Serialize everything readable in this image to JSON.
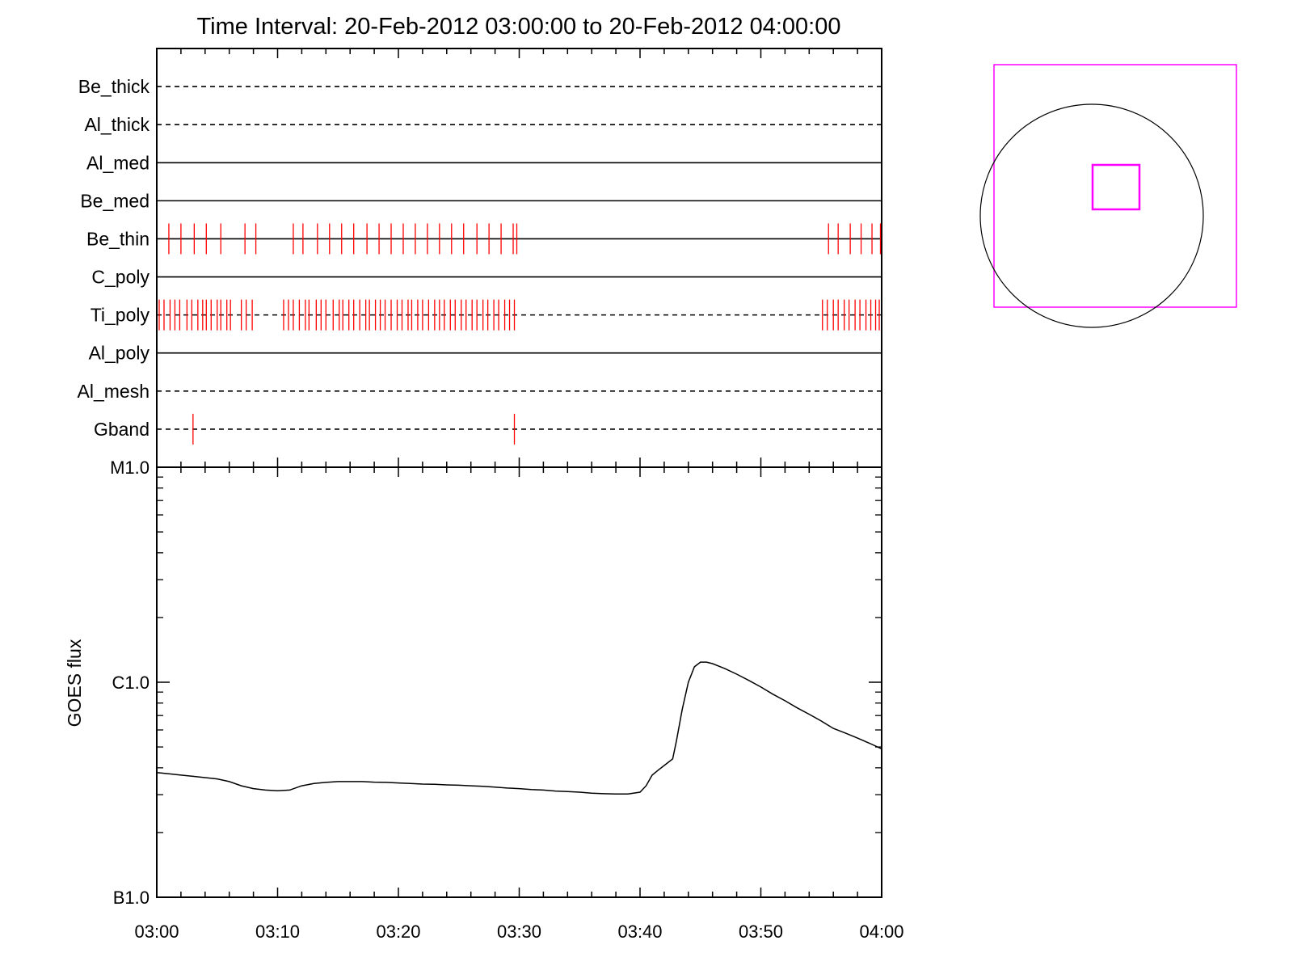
{
  "chart_data": [
    {
      "type": "timeline",
      "title": "Time Interval: 20-Feb-2012 03:00:00 to 20-Feb-2012 04:00:00",
      "rows": [
        {
          "label": "Be_thick",
          "style": "dashed",
          "events": []
        },
        {
          "label": "Al_thick",
          "style": "dashed",
          "events": []
        },
        {
          "label": "Al_med",
          "style": "solid",
          "events": []
        },
        {
          "label": "Be_med",
          "style": "solid",
          "events": []
        },
        {
          "label": "Be_thin",
          "style": "solid",
          "events": [
            1.0,
            2.0,
            3.1,
            4.1,
            5.3,
            7.3,
            8.2,
            11.3,
            12.1,
            13.3,
            14.3,
            15.3,
            16.3,
            17.4,
            18.4,
            19.4,
            20.4,
            21.4,
            22.4,
            23.4,
            24.4,
            25.4,
            26.5,
            27.5,
            28.5,
            29.5,
            29.8,
            55.6,
            56.4,
            57.4,
            58.3,
            59.2,
            59.9
          ]
        },
        {
          "label": "C_poly",
          "style": "solid",
          "events": []
        },
        {
          "label": "Ti_poly",
          "style": "dashed",
          "events": [
            0.2,
            0.6,
            1.1,
            1.5,
            1.9,
            2.5,
            2.9,
            3.4,
            3.8,
            4.1,
            4.5,
            5.0,
            5.3,
            5.8,
            6.1,
            7.0,
            7.4,
            7.9,
            10.5,
            10.9,
            11.3,
            11.8,
            12.3,
            12.6,
            13.2,
            13.6,
            14.0,
            14.6,
            15.1,
            15.4,
            15.9,
            16.3,
            16.8,
            17.3,
            17.6,
            18.1,
            18.5,
            18.9,
            19.4,
            19.9,
            20.3,
            20.8,
            21.1,
            21.6,
            22.0,
            22.5,
            23.0,
            23.4,
            23.8,
            24.3,
            24.7,
            25.2,
            25.6,
            26.1,
            26.5,
            27.0,
            27.4,
            27.9,
            28.3,
            28.8,
            29.2,
            29.6,
            55.1,
            55.5,
            56.0,
            56.4,
            56.9,
            57.3,
            57.8,
            58.2,
            58.7,
            59.1,
            59.5,
            59.8
          ]
        },
        {
          "label": "Al_poly",
          "style": "solid",
          "events": []
        },
        {
          "label": "Al_mesh",
          "style": "dashed",
          "events": []
        },
        {
          "label": "Gband",
          "style": "dashed",
          "events": [
            3.0,
            29.6
          ]
        }
      ],
      "xlim": [
        "03:00",
        "04:00"
      ],
      "event_color": "#ff0000"
    },
    {
      "type": "line",
      "ylabel": "GOES flux",
      "yscale": "log",
      "ylim": [
        1e-07,
        1e-05
      ],
      "y_ticks": [
        {
          "value": 1e-05,
          "label": "M1.0"
        },
        {
          "value": 1e-06,
          "label": "C1.0"
        },
        {
          "value": 1e-07,
          "label": "B1.0"
        }
      ],
      "xlim_minutes": [
        0,
        60
      ],
      "x_ticks": [
        "03:00",
        "03:10",
        "03:20",
        "03:30",
        "03:40",
        "03:50",
        "04:00"
      ],
      "series": [
        {
          "x": [
            0,
            1,
            2,
            3,
            4,
            5,
            6,
            7,
            8,
            9,
            10,
            11,
            12,
            13,
            14,
            15,
            16,
            17,
            18,
            19,
            20,
            21,
            22,
            23,
            24,
            25,
            26,
            27,
            28,
            29,
            30,
            31,
            32,
            33,
            34,
            35,
            36,
            37,
            38,
            39,
            40,
            40.5,
            41,
            41.5,
            42,
            42.7,
            43,
            43.5,
            44,
            44.5,
            45,
            45.5,
            46,
            47,
            48,
            49,
            50,
            51,
            52,
            53,
            54,
            55,
            56,
            57,
            58,
            59,
            60
          ],
          "y": [
            3.8e-07,
            3.75e-07,
            3.7e-07,
            3.65e-07,
            3.6e-07,
            3.55e-07,
            3.45e-07,
            3.3e-07,
            3.2e-07,
            3.15e-07,
            3.13e-07,
            3.15e-07,
            3.3e-07,
            3.38e-07,
            3.42e-07,
            3.45e-07,
            3.45e-07,
            3.45e-07,
            3.43e-07,
            3.42e-07,
            3.4e-07,
            3.38e-07,
            3.36e-07,
            3.35e-07,
            3.33e-07,
            3.32e-07,
            3.3e-07,
            3.28e-07,
            3.25e-07,
            3.22e-07,
            3.2e-07,
            3.17e-07,
            3.15e-07,
            3.12e-07,
            3.1e-07,
            3.08e-07,
            3.05e-07,
            3.03e-07,
            3.02e-07,
            3.02e-07,
            3.08e-07,
            3.3e-07,
            3.7e-07,
            3.9e-07,
            4.1e-07,
            4.4e-07,
            5.3e-07,
            7.5e-07,
            1e-06,
            1.18e-06,
            1.24e-06,
            1.24e-06,
            1.22e-06,
            1.16e-06,
            1.09e-06,
            1.02e-06,
            9.5e-07,
            8.8e-07,
            8.2e-07,
            7.6e-07,
            7.1e-07,
            6.6e-07,
            6.1e-07,
            5.8e-07,
            5.5e-07,
            5.2e-07,
            4.9e-07
          ]
        }
      ]
    }
  ],
  "fov_colors": {
    "box": "#ff00ff",
    "disk": "#000000"
  }
}
